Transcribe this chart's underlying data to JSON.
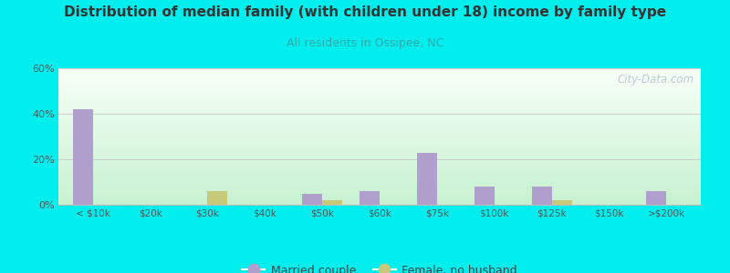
{
  "title": "Distribution of median family (with children under 18) income by family type",
  "subtitle": "All residents in Ossipee, NC",
  "categories": [
    "< $10k",
    "$20k",
    "$30k",
    "$40k",
    "$50k",
    "$60k",
    "$75k",
    "$100k",
    "$125k",
    "$150k",
    ">$200k"
  ],
  "married_couple": [
    42,
    0,
    0,
    0,
    5,
    6,
    23,
    8,
    8,
    0,
    6
  ],
  "female_no_husband": [
    0,
    0,
    6,
    0,
    2,
    0,
    0,
    0,
    2,
    0,
    0
  ],
  "married_color": "#b09fcc",
  "female_color": "#c8c87a",
  "title_color": "#333333",
  "subtitle_color": "#33aaaa",
  "background_color": "#00eeee",
  "ylim": [
    0,
    60
  ],
  "yticks": [
    0,
    20,
    40,
    60
  ],
  "watermark": "City-Data.com",
  "bar_width": 0.35,
  "legend_married": "Married couple",
  "legend_female": "Female, no husband"
}
